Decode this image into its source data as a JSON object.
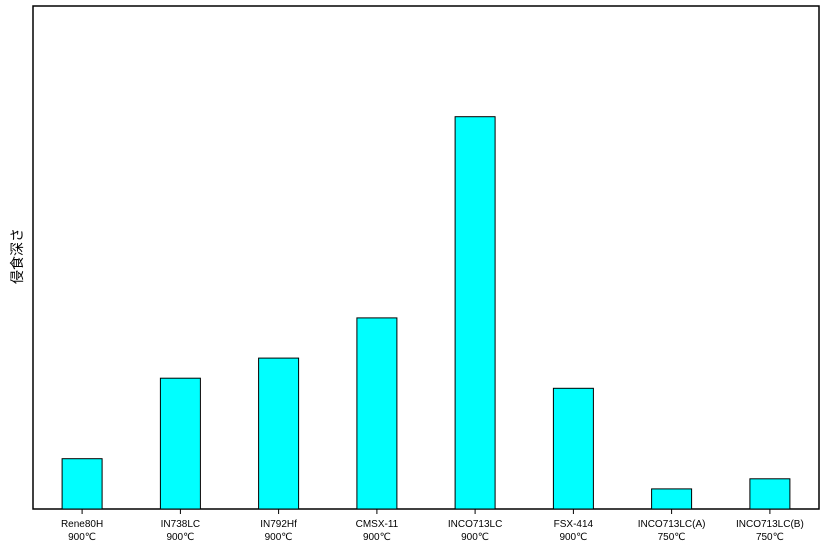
{
  "chart_data": {
    "type": "bar",
    "title": "",
    "xlabel": "",
    "ylabel": "侵食深さ",
    "categories": [
      [
        "Rene80H",
        "900℃"
      ],
      [
        "IN738LC",
        "900℃"
      ],
      [
        "IN792Hf",
        "900℃"
      ],
      [
        "CMSX-11",
        "900℃"
      ],
      [
        "INCO713LC",
        "900℃"
      ],
      [
        "FSX-414",
        "900℃"
      ],
      [
        "INCO713LC(A)",
        "750℃"
      ],
      [
        "INCO713LC(B)",
        "750℃"
      ]
    ],
    "values": [
      10,
      26,
      30,
      38,
      78,
      24,
      4,
      6
    ],
    "ylim": [
      0,
      100
    ],
    "grid": false,
    "legend": "none",
    "bar_color": "#00ffff",
    "bar_edge_color": "#000000",
    "axis_color": "#000000"
  }
}
